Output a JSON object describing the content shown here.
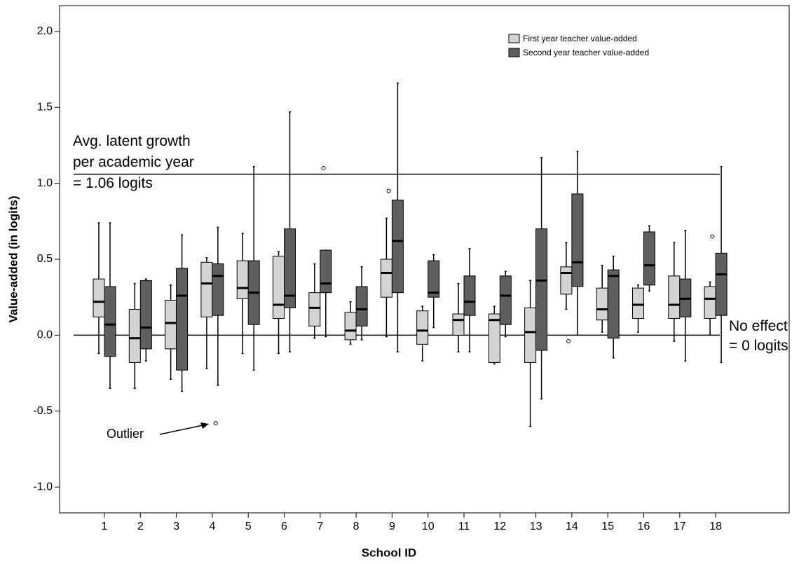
{
  "chart_data": {
    "type": "box",
    "x_label": "School ID",
    "y_label": "Value-added (in logits)",
    "categories": [
      "1",
      "2",
      "3",
      "4",
      "5",
      "6",
      "7",
      "8",
      "9",
      "10",
      "11",
      "12",
      "13",
      "14",
      "15",
      "16",
      "17",
      "18"
    ],
    "ylim": [
      -1.17,
      2.17
    ],
    "yticks": [
      {
        "value": -1,
        "label": "-1.0"
      },
      -0.5,
      {
        "value": 0,
        "label": "0.0"
      },
      0.5,
      {
        "value": 1,
        "label": "1.0"
      },
      1.5,
      {
        "value": 2,
        "label": "2.0"
      }
    ],
    "legend": "top-right",
    "series": [
      {
        "name": "First year teacher value-added",
        "color": "#d3d3d3",
        "min": [
          -0.12,
          -0.35,
          -0.29,
          -0.22,
          -0.12,
          -0.12,
          -0.02,
          -0.06,
          -0.01,
          -0.17,
          -0.11,
          -0.19,
          -0.6,
          0.17,
          0.02,
          0.02,
          -0.04,
          0.0
        ],
        "q1": [
          0.12,
          -0.18,
          -0.09,
          0.12,
          0.24,
          0.11,
          0.06,
          -0.03,
          0.25,
          -0.06,
          0.0,
          -0.18,
          -0.18,
          0.27,
          0.1,
          0.11,
          0.11,
          0.11
        ],
        "median": [
          0.22,
          -0.02,
          0.08,
          0.34,
          0.31,
          0.2,
          0.18,
          0.03,
          0.41,
          0.03,
          0.1,
          0.1,
          0.02,
          0.41,
          0.17,
          0.2,
          0.2,
          0.24
        ],
        "q3": [
          0.37,
          0.17,
          0.23,
          0.48,
          0.49,
          0.52,
          0.28,
          0.15,
          0.5,
          0.16,
          0.14,
          0.14,
          0.18,
          0.45,
          0.31,
          0.31,
          0.39,
          0.32
        ],
        "max": [
          0.74,
          0.34,
          0.33,
          0.51,
          0.67,
          0.55,
          0.47,
          0.22,
          0.77,
          0.19,
          0.34,
          0.19,
          0.36,
          0.61,
          0.46,
          0.33,
          0.61,
          0.35
        ],
        "outliers": [
          [],
          [],
          [],
          [],
          [],
          [],
          [],
          [],
          [
            0.95
          ],
          [],
          [],
          [],
          [],
          [
            -0.04
          ],
          [],
          [],
          [],
          [
            0.65
          ]
        ]
      },
      {
        "name": "Second year teacher value-added",
        "color": "#5f5f5f",
        "min": [
          -0.35,
          -0.17,
          -0.37,
          -0.33,
          -0.23,
          -0.11,
          -0.01,
          -0.03,
          -0.11,
          0.05,
          -0.11,
          -0.01,
          -0.42,
          0.0,
          -0.15,
          0.29,
          -0.17,
          -0.18
        ],
        "q1": [
          -0.14,
          -0.09,
          -0.23,
          0.13,
          0.07,
          0.18,
          0.28,
          0.06,
          0.28,
          0.25,
          0.13,
          0.07,
          -0.1,
          0.32,
          -0.02,
          0.33,
          0.12,
          0.13
        ],
        "median": [
          0.07,
          0.05,
          0.26,
          0.39,
          0.28,
          0.26,
          0.34,
          0.17,
          0.62,
          0.28,
          0.22,
          0.26,
          0.36,
          0.48,
          0.39,
          0.46,
          0.24,
          0.4
        ],
        "q3": [
          0.32,
          0.36,
          0.44,
          0.47,
          0.49,
          0.7,
          0.56,
          0.32,
          0.89,
          0.49,
          0.39,
          0.39,
          0.7,
          0.93,
          0.43,
          0.68,
          0.37,
          0.54
        ],
        "max": [
          0.74,
          0.37,
          0.66,
          0.71,
          1.11,
          1.47,
          0.56,
          0.45,
          1.66,
          0.53,
          0.57,
          0.42,
          1.17,
          1.21,
          0.52,
          0.72,
          0.69,
          1.11
        ],
        "outliers": [
          [],
          [],
          [],
          [
            -0.58
          ],
          [],
          [],
          [
            1.1
          ],
          [],
          [],
          [],
          [],
          [],
          [],
          [],
          [],
          [],
          [],
          []
        ]
      }
    ],
    "reference_lines": [
      {
        "value": 1.06,
        "label": [
          "Avg. latent growth",
          "per academic year",
          "= 1.06 logits"
        ]
      },
      {
        "value": 0,
        "label": [
          "No effect",
          "= 0 logits"
        ]
      }
    ],
    "annotation": "Outlier"
  }
}
